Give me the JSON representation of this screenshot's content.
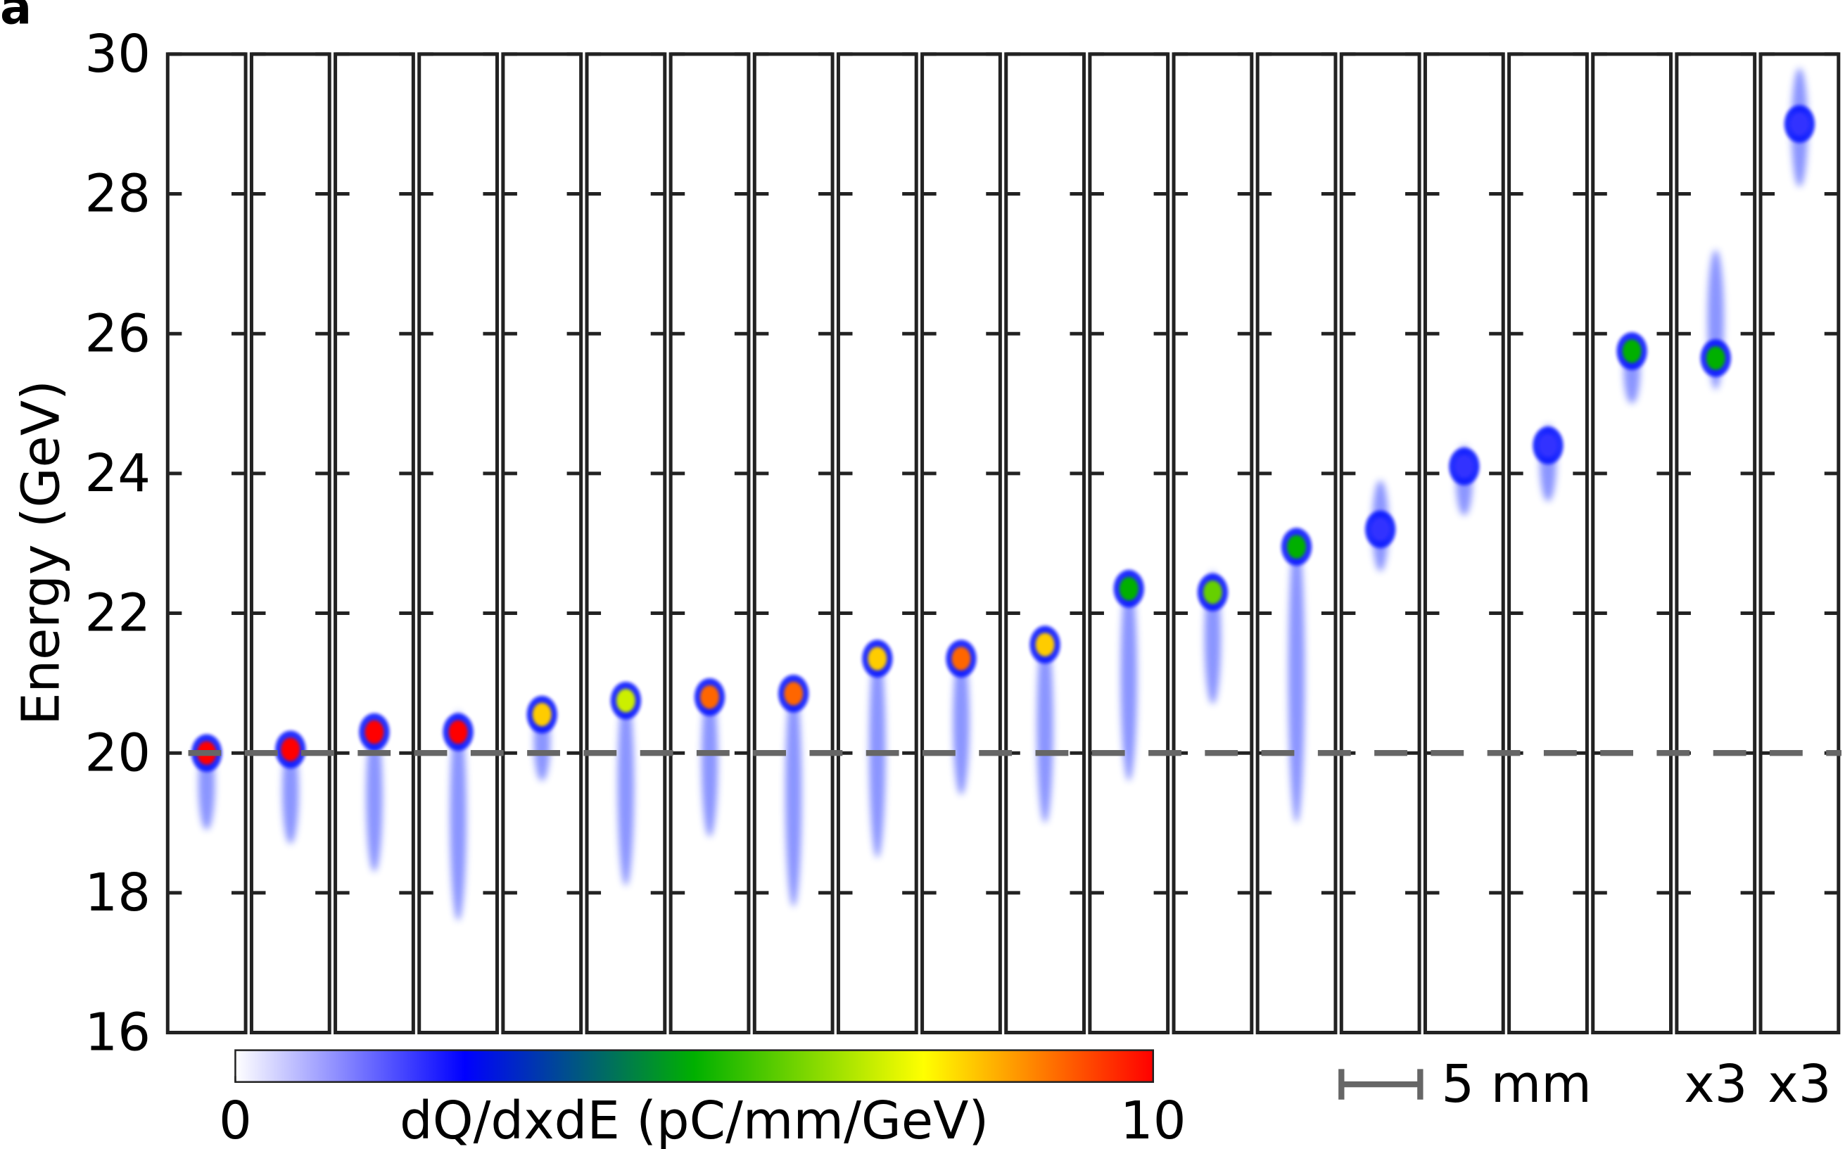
{
  "chart_data": {
    "type": "spectra",
    "panel_label": "a",
    "ylabel": "Energy (GeV)",
    "ylim": [
      16,
      30
    ],
    "yticks": [
      16,
      18,
      20,
      22,
      24,
      26,
      28,
      30
    ],
    "reference_energy": 20,
    "panels": [
      {
        "peak": 20.0,
        "top": 20.2,
        "bottom": 18.9,
        "density": 10
      },
      {
        "peak": 20.05,
        "top": 20.2,
        "bottom": 18.7,
        "density": 10
      },
      {
        "peak": 20.3,
        "top": 20.45,
        "bottom": 18.3,
        "density": 10
      },
      {
        "peak": 20.3,
        "top": 20.6,
        "bottom": 17.6,
        "density": 10
      },
      {
        "peak": 20.55,
        "top": 20.75,
        "bottom": 19.6,
        "density": 8
      },
      {
        "peak": 20.75,
        "top": 20.95,
        "bottom": 18.1,
        "density": 7
      },
      {
        "peak": 20.8,
        "top": 21.0,
        "bottom": 18.8,
        "density": 9
      },
      {
        "peak": 20.85,
        "top": 21.05,
        "bottom": 17.8,
        "density": 9
      },
      {
        "peak": 21.35,
        "top": 21.6,
        "bottom": 18.5,
        "density": 8
      },
      {
        "peak": 21.35,
        "top": 21.5,
        "bottom": 19.4,
        "density": 9
      },
      {
        "peak": 21.55,
        "top": 21.8,
        "bottom": 19.0,
        "density": 8
      },
      {
        "peak": 22.35,
        "top": 22.6,
        "bottom": 19.6,
        "density": 5
      },
      {
        "peak": 22.3,
        "top": 22.6,
        "bottom": 20.7,
        "density": 6
      },
      {
        "peak": 22.95,
        "top": 23.2,
        "bottom": 19.0,
        "density": 5
      },
      {
        "peak": 23.2,
        "top": 23.9,
        "bottom": 22.6,
        "density": 2
      },
      {
        "peak": 24.1,
        "top": 24.4,
        "bottom": 23.4,
        "density": 2
      },
      {
        "peak": 24.4,
        "top": 24.7,
        "bottom": 23.6,
        "density": 2
      },
      {
        "peak": 25.75,
        "top": 25.95,
        "bottom": 25.0,
        "density": 5
      },
      {
        "peak": 25.65,
        "top": 27.2,
        "bottom": 25.2,
        "density": 5
      },
      {
        "peak": 29.0,
        "top": 29.8,
        "bottom": 28.1,
        "density": 2
      }
    ],
    "colorbar": {
      "label": "dQ/dxdE (pC/mm/GeV)",
      "lim": [
        0,
        10
      ],
      "ticks": [
        0,
        10
      ]
    },
    "scale_bar_label": "5 mm",
    "annotations": [
      "x3",
      "x3"
    ]
  }
}
